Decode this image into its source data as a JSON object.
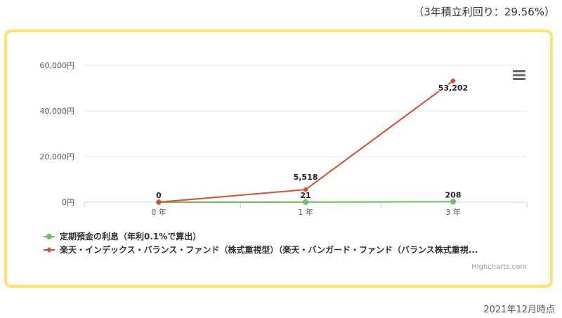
{
  "header": {
    "note": "（3年積立利回り：29.56%）"
  },
  "footer": {
    "note": "2021年12月時点"
  },
  "credits": "Highcharts.com",
  "chart_data": {
    "type": "line",
    "title": "",
    "xlabel": "",
    "ylabel": "",
    "categories": [
      "0 年",
      "1 年",
      "3 年"
    ],
    "y_ticks": [
      "0円",
      "20,000円",
      "40,000円",
      "60,000円"
    ],
    "ylim": [
      0,
      60000
    ],
    "grid": true,
    "legend_position": "bottom-left",
    "series": [
      {
        "name": "定期預金の利息（年利0.1%で算出）",
        "color": "#6abf5e",
        "values": [
          0,
          21,
          208
        ],
        "labels": [
          "",
          "21",
          "208"
        ]
      },
      {
        "name": "楽天・インデックス・バランス・ファンド（株式重視型）（楽天・バンガード・ファンド（バランス株式重視...",
        "color": "#e0482a",
        "values": [
          0,
          5518,
          53202
        ],
        "labels": [
          "0",
          "5,518",
          "53,202"
        ]
      }
    ]
  }
}
